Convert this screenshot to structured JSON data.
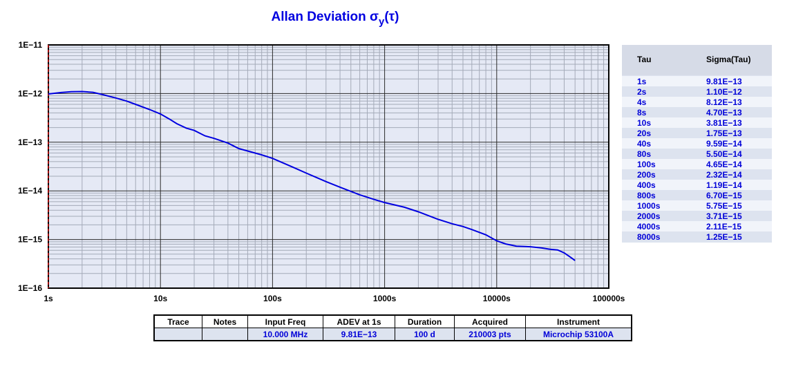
{
  "title": {
    "main": "Allan Deviation σ",
    "sub": "y",
    "tail": "(τ)"
  },
  "chart_data": {
    "type": "line",
    "title": "Allan Deviation σy(τ)",
    "xscale": "log",
    "yscale": "log",
    "xlim": [
      1,
      100000
    ],
    "ylim": [
      1e-16,
      1e-11
    ],
    "x_tick_labels": [
      "1s",
      "10s",
      "100s",
      "1000s",
      "10000s",
      "100000s"
    ],
    "y_tick_labels": [
      "1E−11",
      "1E−12",
      "1E−13",
      "1E−14",
      "1E−15",
      "1E−16"
    ],
    "grid": true,
    "line_color": "#0000e0",
    "series": [
      {
        "x": [
          1,
          1.3,
          1.6,
          2,
          2.5,
          3,
          4,
          5,
          6,
          8,
          10,
          12,
          14,
          17,
          20,
          25,
          30,
          40,
          50,
          60,
          80,
          100,
          150,
          200,
          300,
          400,
          600,
          800,
          1000,
          1500,
          2000,
          3000,
          4000,
          5000,
          6000,
          8000,
          10000,
          12000,
          15000,
          20000,
          25000,
          30000,
          35000,
          40000,
          45000,
          50000
        ],
        "y": [
          9.81e-13,
          1.05e-12,
          1.09e-12,
          1.1e-12,
          1.06e-12,
          9.6e-13,
          8.12e-13,
          7e-13,
          6e-13,
          4.7e-13,
          3.81e-13,
          3e-13,
          2.4e-13,
          1.95e-13,
          1.75e-13,
          1.35e-13,
          1.2e-13,
          9.59e-14,
          7.4e-14,
          6.6e-14,
          5.5e-14,
          4.65e-14,
          3.1e-14,
          2.32e-14,
          1.55e-14,
          1.19e-14,
          8.3e-15,
          6.7e-15,
          5.75e-15,
          4.6e-15,
          3.71e-15,
          2.6e-15,
          2.11e-15,
          1.85e-15,
          1.6e-15,
          1.25e-15,
          9.4e-16,
          8.1e-16,
          7.3e-16,
          7.1e-16,
          6.7e-16,
          6.3e-16,
          6.1e-16,
          5.3e-16,
          4.4e-16,
          3.7e-16
        ]
      }
    ]
  },
  "tau_table": {
    "headers": {
      "tau": "Tau",
      "sigma": "Sigma(Tau)"
    },
    "rows": [
      {
        "tau": "1s",
        "sigma": "9.81E−13"
      },
      {
        "tau": "2s",
        "sigma": "1.10E−12"
      },
      {
        "tau": "4s",
        "sigma": "8.12E−13"
      },
      {
        "tau": "8s",
        "sigma": "4.70E−13"
      },
      {
        "tau": "10s",
        "sigma": "3.81E−13"
      },
      {
        "tau": "20s",
        "sigma": "1.75E−13"
      },
      {
        "tau": "40s",
        "sigma": "9.59E−14"
      },
      {
        "tau": "80s",
        "sigma": "5.50E−14"
      },
      {
        "tau": "100s",
        "sigma": "4.65E−14"
      },
      {
        "tau": "200s",
        "sigma": "2.32E−14"
      },
      {
        "tau": "400s",
        "sigma": "1.19E−14"
      },
      {
        "tau": "800s",
        "sigma": "6.70E−15"
      },
      {
        "tau": "1000s",
        "sigma": "5.75E−15"
      },
      {
        "tau": "2000s",
        "sigma": "3.71E−15"
      },
      {
        "tau": "4000s",
        "sigma": "2.11E−15"
      },
      {
        "tau": "8000s",
        "sigma": "1.25E−15"
      }
    ]
  },
  "info_table": {
    "headers": [
      "Trace",
      "Notes",
      "Input Freq",
      "ADEV at 1s",
      "Duration",
      "Acquired",
      "Instrument"
    ],
    "values": [
      "",
      "",
      "10.000 MHz",
      "9.81E−13",
      "100 d",
      "210003 pts",
      "Microchip 53100A"
    ],
    "highlight_color": "#e00000"
  }
}
